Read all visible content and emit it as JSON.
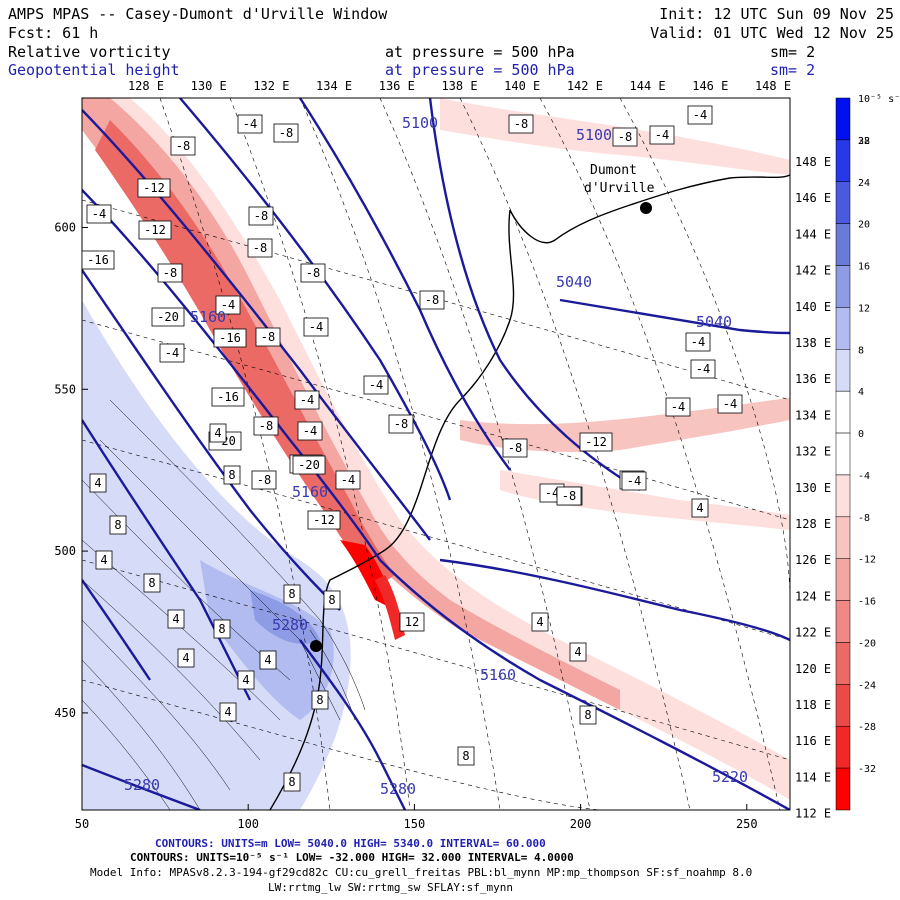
{
  "header": {
    "title": "AMPS MPAS -- Casey-Dumont d'Urville Window",
    "forecast": "Fcst:   61 h",
    "init": "Init: 12 UTC Sun 09 Nov 25",
    "valid": "Valid: 01 UTC Wed 12 Nov 25",
    "field1_name": "Relative vorticity",
    "field1_level": "at pressure =  500 hPa",
    "field1_sm": "sm= 2",
    "field2_name": "Geopotential height",
    "field2_level": "at pressure =  500 hPa",
    "field2_sm": "sm= 2"
  },
  "footer": {
    "line1": "CONTOURS:  UNITS=m  LOW=  5040.0      HIGH=  5340.0      INTERVAL=   60.000",
    "line2": "CONTOURS:  UNITS=10⁻⁵ s⁻¹  LOW=  -32.000      HIGH=  32.000      INTERVAL=   4.0000",
    "line3": "Model Info: MPASv8.2.3-194-gf29cd82c CU:cu_grell_freitas PBL:bl_mynn MP:mp_thompson SF:sf_noahmp 8.0",
    "line4": "LW:rrtmg_lw SW:rrtmg_sw SFLAY:sf_mynn"
  },
  "places": {
    "dumont": "Dumont",
    "durville": "d'Urville"
  },
  "colorbar": {
    "units_label": "10⁻⁵ s⁻¹",
    "ticks": [
      "32",
      "28",
      "24",
      "20",
      "16",
      "12",
      "8",
      "4",
      "0",
      "-4",
      "-8",
      "-12",
      "-16",
      "-20",
      "-24",
      "-28",
      "-32"
    ],
    "colors": [
      "#0010f0",
      "#2638e8",
      "#4a5ae0",
      "#6a7ad8",
      "#8e9ce6",
      "#b2bcf0",
      "#d6dcf8",
      "#ffffff",
      "#ffffff",
      "#fde0de",
      "#f8c4c0",
      "#f4a6a2",
      "#f08884",
      "#ec6a66",
      "#ea4a48",
      "#f02828",
      "#ff0000"
    ]
  },
  "chart_data": {
    "type": "heatmap",
    "description_units": "Relative vorticity shading (10^-5 s^-1) with 500 hPa geopotential height contours (m)",
    "x_axis": {
      "label": "",
      "range": [
        50,
        263
      ],
      "ticks": [
        50,
        100,
        150,
        200,
        250
      ]
    },
    "y_axis": {
      "label": "",
      "range": [
        420,
        640
      ],
      "ticks": [
        450,
        500,
        550,
        600
      ]
    },
    "top_lon_ticks": [
      "128 E",
      "130 E",
      "132 E",
      "134 E",
      "136 E",
      "138 E",
      "140 E",
      "142 E",
      "144 E",
      "146 E",
      "148 E"
    ],
    "right_lon_ticks": [
      "148 E",
      "146 E",
      "144 E",
      "142 E",
      "140 E",
      "138 E",
      "136 E",
      "134 E",
      "132 E",
      "130 E",
      "128 E",
      "126 E",
      "124 E",
      "122 E",
      "120 E",
      "118 E",
      "116 E",
      "114 E",
      "112 E"
    ],
    "height_contours": {
      "low": 5040.0,
      "high": 5340.0,
      "interval": 60.0,
      "labels": [
        "5040",
        "5040",
        "5100",
        "5100",
        "5160",
        "5160",
        "5160",
        "5220",
        "5280",
        "5280",
        "5280"
      ]
    },
    "vorticity_contours": {
      "low": -32.0,
      "high": 32.0,
      "interval": 4.0,
      "labels": [
        "-4",
        "-8",
        "-8",
        "-12",
        "-8",
        "-4",
        "-12",
        "-8",
        "-16",
        "-8",
        "-8",
        "-4",
        "-20",
        "-16",
        "-8",
        "-4",
        "-4",
        "-16",
        "-8",
        "-4",
        "-20",
        "-4",
        "-8",
        "-20",
        "-4",
        "-4",
        "-12",
        "-8",
        "-8",
        "-4",
        "-20",
        "-8",
        "-4",
        "-4",
        "-8",
        "-4",
        "-4",
        "-4",
        "-4",
        "-4",
        "-8",
        "-8",
        "-8",
        "-4",
        "4",
        "8",
        "4",
        "8",
        "4",
        "8",
        "4",
        "8",
        "4",
        "4",
        "8",
        "4",
        "4",
        "8",
        "8",
        "4",
        "4",
        "8",
        "4",
        "-12",
        "12",
        "8",
        "8"
      ]
    },
    "colorbar_range": [
      -32,
      32
    ]
  }
}
